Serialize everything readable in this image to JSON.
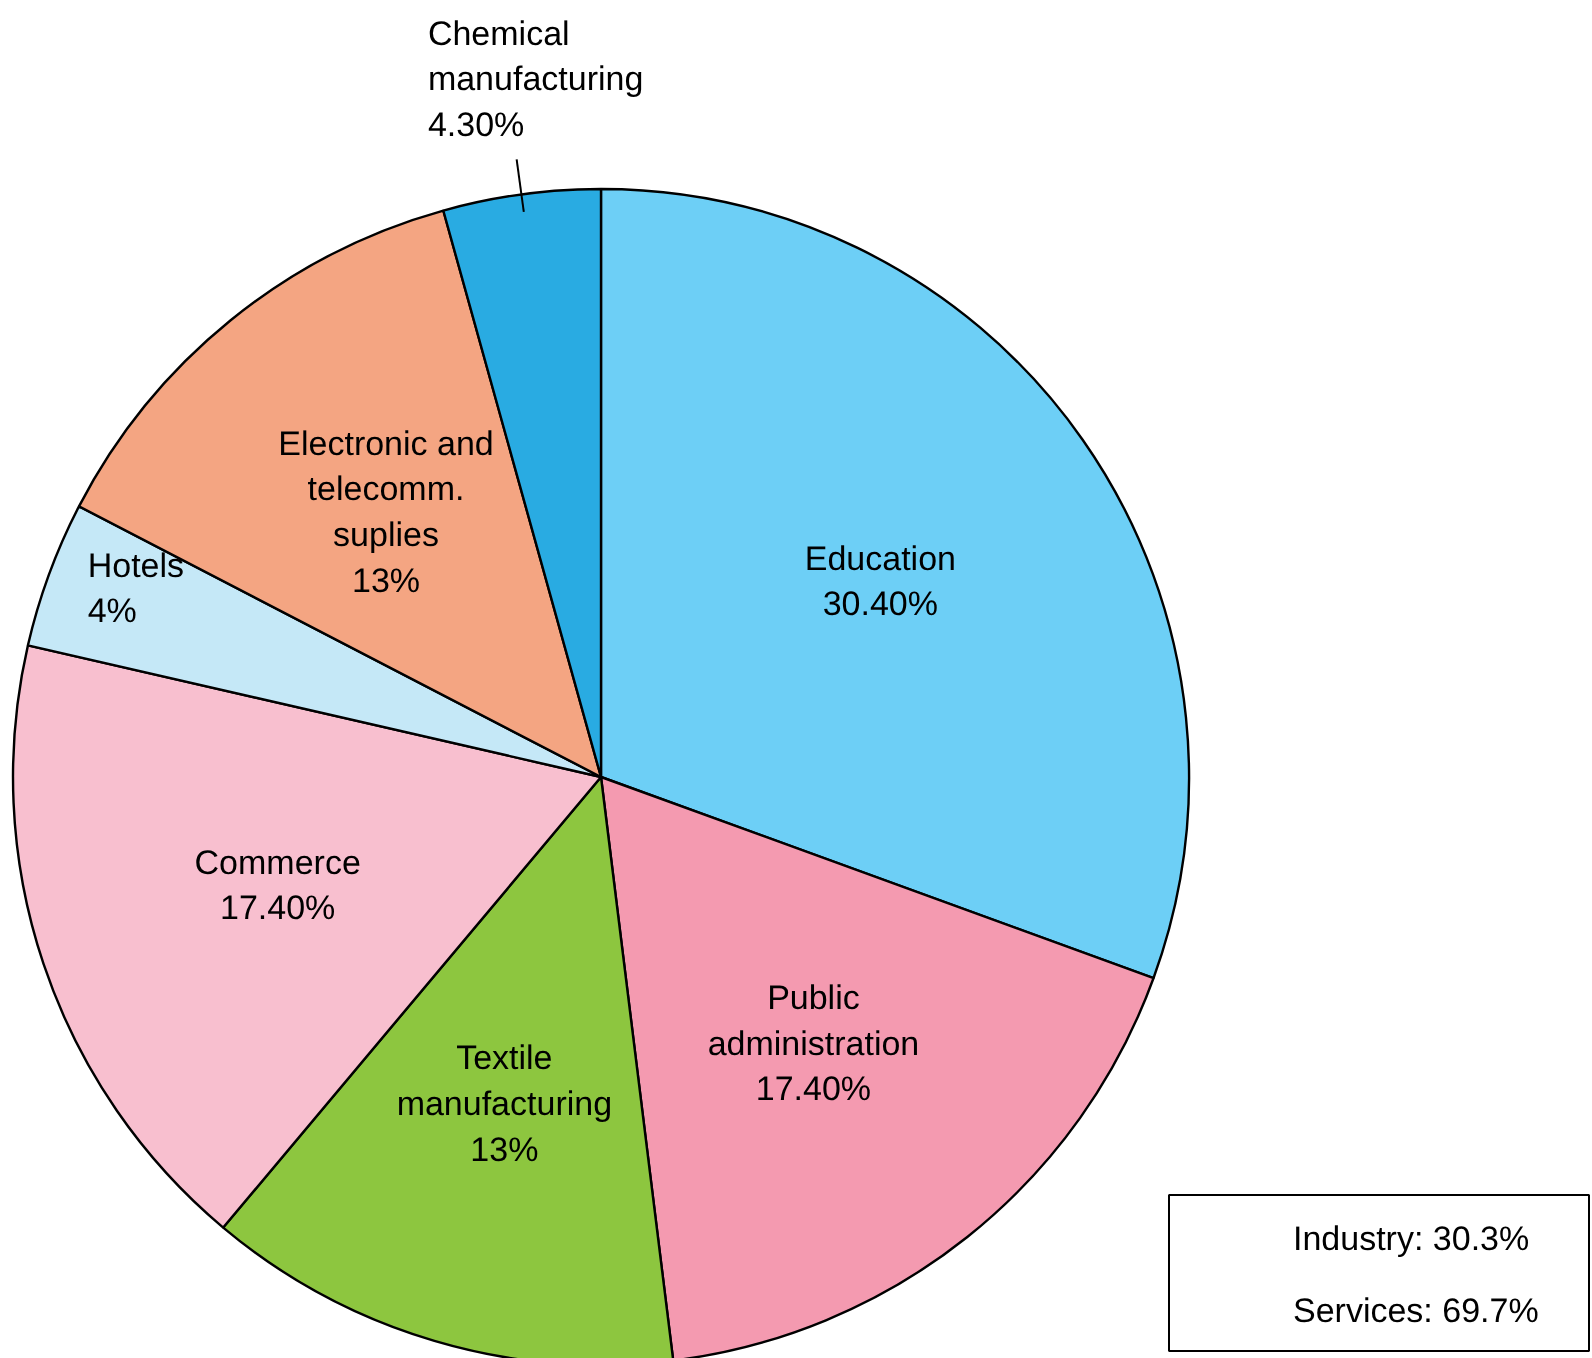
{
  "chart_data": {
    "type": "pie",
    "categories": [
      "Education",
      "Public administration",
      "Textile manufacturing",
      "Commerce",
      "Hotels",
      "Electronic and telecomm. suplies",
      "Chemical manufacturing"
    ],
    "values": [
      30.4,
      17.4,
      13,
      17.4,
      4,
      13,
      4.3
    ],
    "value_labels": [
      "30.40%",
      "17.40%",
      "13%",
      "17.40%",
      "4%",
      "13%",
      "4.30%"
    ],
    "colors": [
      "#6dcff6",
      "#f49ab0",
      "#8dc63f",
      "#f8bfcf",
      "#c5e8f7",
      "#f4a582",
      "#29abe2"
    ],
    "annotations": [
      "Industry: 30.3%",
      "Services: 69.7%"
    ]
  }
}
